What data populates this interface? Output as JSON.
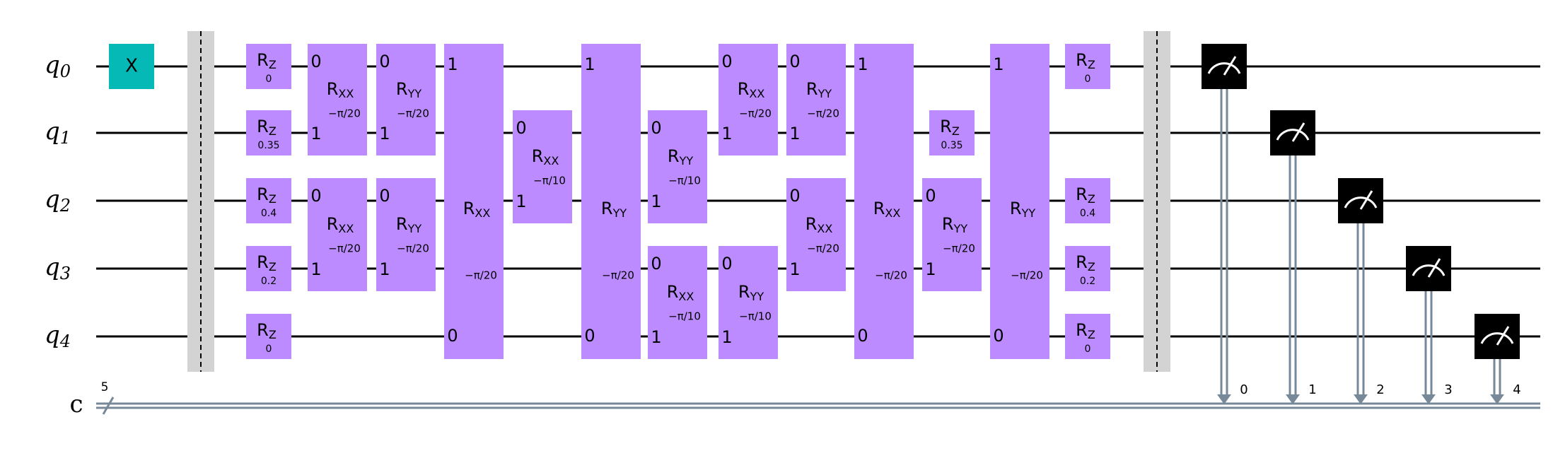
{
  "colors": {
    "x_gate": "#05BAB6",
    "rot_gate": "#BB8BFF",
    "barrier": "#D3D3D3",
    "measure": "#000000",
    "classical": "#778899",
    "wire": "#000000"
  },
  "qubits": [
    "q",
    "q",
    "q",
    "q",
    "q"
  ],
  "qubit_indices": [
    "0",
    "1",
    "2",
    "3",
    "4"
  ],
  "creg": {
    "name": "c",
    "size": "5",
    "bits": [
      "0",
      "1",
      "2",
      "3",
      "4"
    ]
  },
  "gates": [
    {
      "kind": "x",
      "label": "X",
      "q": 0,
      "col": 0
    },
    {
      "kind": "barrier",
      "col": 1
    },
    {
      "kind": "rz",
      "base": "R",
      "sub": "Z",
      "param": "0",
      "q": 0,
      "col": 2
    },
    {
      "kind": "rz",
      "base": "R",
      "sub": "Z",
      "param": "0.35",
      "q": 1,
      "col": 2
    },
    {
      "kind": "rz",
      "base": "R",
      "sub": "Z",
      "param": "0.4",
      "q": 2,
      "col": 2
    },
    {
      "kind": "rz",
      "base": "R",
      "sub": "Z",
      "param": "0.2",
      "q": 3,
      "col": 2
    },
    {
      "kind": "rz",
      "base": "R",
      "sub": "Z",
      "param": "0",
      "q": 4,
      "col": 2
    },
    {
      "kind": "r2",
      "base": "R",
      "sub": "XX",
      "param": "−π/20",
      "q0": 0,
      "q1": 1,
      "col": 3
    },
    {
      "kind": "r2",
      "base": "R",
      "sub": "XX",
      "param": "−π/20",
      "q0": 2,
      "q1": 3,
      "col": 3
    },
    {
      "kind": "r2",
      "base": "R",
      "sub": "YY",
      "param": "−π/20",
      "q0": 0,
      "q1": 1,
      "col": 4
    },
    {
      "kind": "r2",
      "base": "R",
      "sub": "YY",
      "param": "−π/20",
      "q0": 2,
      "q1": 3,
      "col": 4
    },
    {
      "kind": "r2tall",
      "base": "R",
      "sub": "XX",
      "param": "−π/20",
      "top": "1",
      "bot": "0",
      "col": 5
    },
    {
      "kind": "r2",
      "base": "R",
      "sub": "XX",
      "param": "−π/10",
      "q0": 1,
      "q1": 2,
      "col": 6
    },
    {
      "kind": "r2tall",
      "base": "R",
      "sub": "YY",
      "param": "−π/20",
      "top": "1",
      "bot": "0",
      "col": 7
    },
    {
      "kind": "r2",
      "base": "R",
      "sub": "YY",
      "param": "−π/10",
      "q0": 1,
      "q1": 2,
      "col": 8
    },
    {
      "kind": "r2",
      "base": "R",
      "sub": "XX",
      "param": "−π/10",
      "q0": 3,
      "q1": 4,
      "col": 8
    },
    {
      "kind": "r2",
      "base": "R",
      "sub": "YY",
      "param": "−π/10",
      "q0": 3,
      "q1": 4,
      "col": 9
    },
    {
      "kind": "r2",
      "base": "R",
      "sub": "XX",
      "param": "−π/20",
      "q0": 0,
      "q1": 1,
      "col": 9
    },
    {
      "kind": "r2",
      "base": "R",
      "sub": "YY",
      "param": "−π/20",
      "q0": 0,
      "q1": 1,
      "col": 10
    },
    {
      "kind": "r2",
      "base": "R",
      "sub": "XX",
      "param": "−π/20",
      "q0": 2,
      "q1": 3,
      "col": 10
    },
    {
      "kind": "r2tall",
      "base": "R",
      "sub": "XX",
      "param": "−π/20",
      "top": "1",
      "bot": "0",
      "col": 11
    },
    {
      "kind": "rz",
      "base": "R",
      "sub": "Z",
      "param": "0.35",
      "q": 1,
      "col": 12
    },
    {
      "kind": "r2",
      "base": "R",
      "sub": "YY",
      "param": "−π/20",
      "q0": 2,
      "q1": 3,
      "col": 12
    },
    {
      "kind": "r2tall",
      "base": "R",
      "sub": "YY",
      "param": "−π/20",
      "top": "1",
      "bot": "0",
      "col": 13
    },
    {
      "kind": "rz",
      "base": "R",
      "sub": "Z",
      "param": "0",
      "q": 0,
      "col": 14
    },
    {
      "kind": "rz",
      "base": "R",
      "sub": "Z",
      "param": "0.4",
      "q": 2,
      "col": 14
    },
    {
      "kind": "rz",
      "base": "R",
      "sub": "Z",
      "param": "0.2",
      "q": 3,
      "col": 14
    },
    {
      "kind": "rz",
      "base": "R",
      "sub": "Z",
      "param": "0",
      "q": 4,
      "col": 14
    },
    {
      "kind": "barrier",
      "col": 15
    },
    {
      "kind": "measure",
      "q": 0,
      "bit": 0,
      "col": 16
    },
    {
      "kind": "measure",
      "q": 1,
      "bit": 1,
      "col": 17
    },
    {
      "kind": "measure",
      "q": 2,
      "bit": 2,
      "col": 18
    },
    {
      "kind": "measure",
      "q": 3,
      "bit": 3,
      "col": 19
    },
    {
      "kind": "measure",
      "q": 4,
      "bit": 4,
      "col": 20
    }
  ],
  "pin_labels": {
    "top": "0",
    "bottom": "1"
  }
}
